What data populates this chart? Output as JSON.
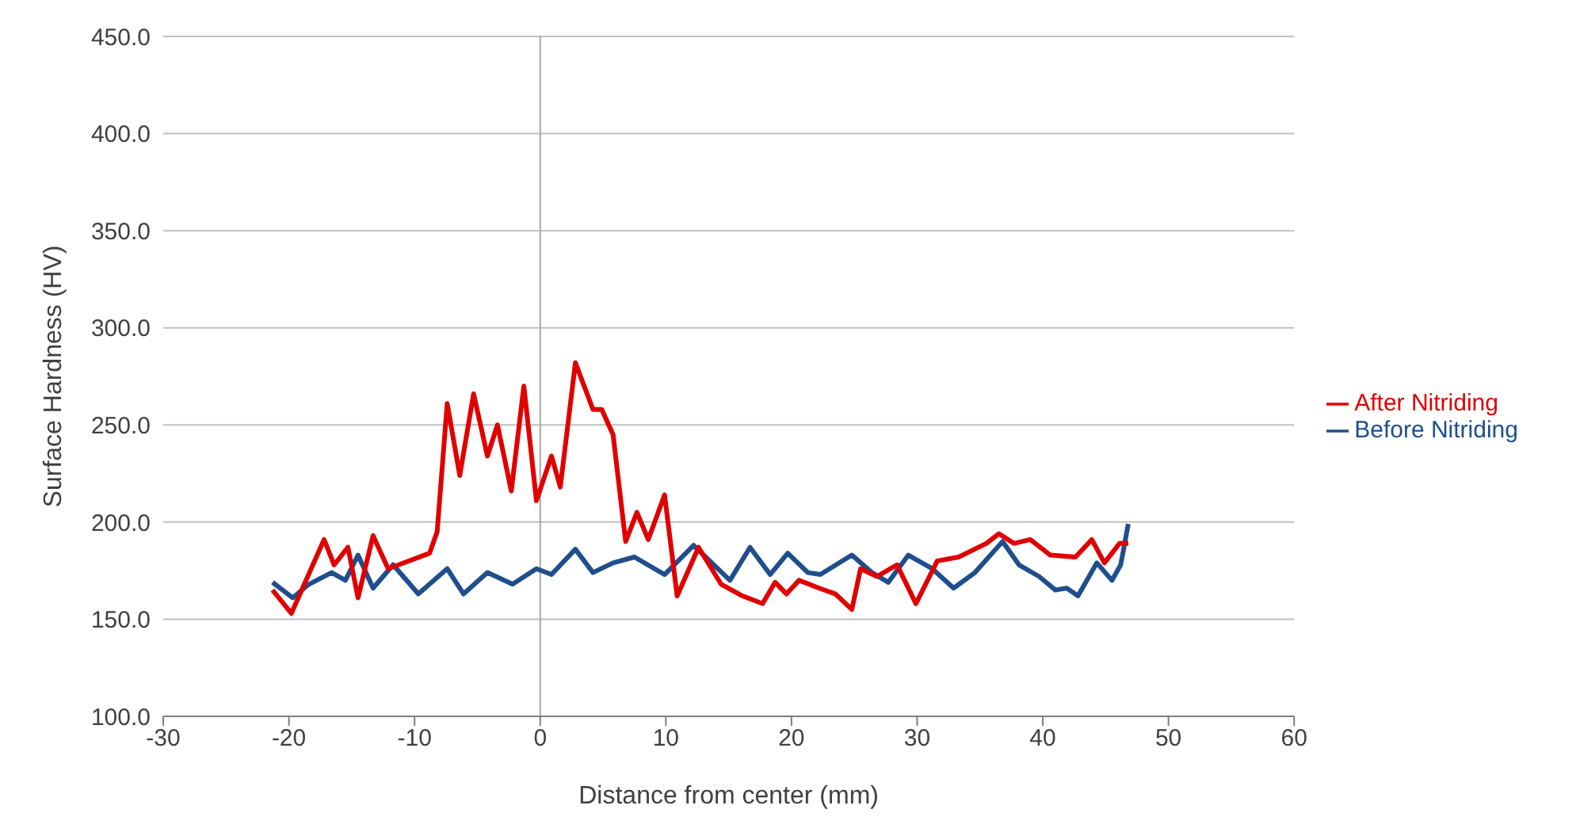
{
  "chart_data": {
    "type": "line",
    "xlabel": "Distance from center (mm)",
    "ylabel": "Surface Hardness (HV)",
    "xlim": [
      -30,
      60
    ],
    "xticks": [
      -30,
      -20,
      -10,
      0,
      10,
      20,
      30,
      40,
      50,
      60
    ],
    "ylim": [
      100,
      450
    ],
    "yticks": [
      {
        "value": 100,
        "label": "100.0"
      },
      {
        "value": 150,
        "label": "150.0"
      },
      {
        "value": 200,
        "label": "200.0"
      },
      {
        "value": 250,
        "label": "250.0"
      },
      {
        "value": 300,
        "label": "300.0"
      },
      {
        "value": 350,
        "label": "350.0"
      },
      {
        "value": 400,
        "label": "400.0"
      },
      {
        "value": 450,
        "label": "450.0"
      }
    ],
    "grid": "y",
    "legend": "right",
    "marker": "none",
    "line_style": "solid",
    "ref_lines": [
      {
        "axis": "x",
        "value": 0,
        "color": "#a6a6a6"
      }
    ],
    "series": [
      {
        "name": "Before Nitriding",
        "color": "#1f4e8c",
        "x": [
          -21.3,
          -19.7,
          -18.4,
          -16.6,
          -15.5,
          -14.5,
          -13.3,
          -11.7,
          -9.7,
          -7.4,
          -6.1,
          -4.2,
          -2.2,
          -0.3,
          0.9,
          2.8,
          4.2,
          5.8,
          7.5,
          9.9,
          12.2,
          15.1,
          16.7,
          18.3,
          19.7,
          21.3,
          22.3,
          24.8,
          26.4,
          27.7,
          29.3,
          31.2,
          32.9,
          34.6,
          36.8,
          38.1,
          39.7,
          41.0,
          41.9,
          42.8,
          44.3,
          45.5,
          46.2,
          46.8
        ],
        "values": [
          169,
          161,
          168,
          174,
          170,
          183,
          166,
          178,
          163,
          176,
          163,
          174,
          168,
          176,
          173,
          186,
          174,
          179,
          182,
          173,
          188,
          170,
          187,
          173,
          184,
          174,
          173,
          183,
          174,
          169,
          183,
          176,
          166,
          174,
          190,
          178,
          172,
          165,
          166,
          162,
          179,
          170,
          178,
          199
        ]
      },
      {
        "name": "After Nitriding",
        "color": "#e00000",
        "x": [
          -21.3,
          -19.8,
          -17.2,
          -16.4,
          -15.3,
          -14.5,
          -13.3,
          -12.1,
          -8.8,
          -8.2,
          -7.4,
          -6.4,
          -5.3,
          -4.2,
          -3.4,
          -2.3,
          -1.3,
          -0.3,
          0.9,
          1.6,
          2.8,
          4.2,
          4.9,
          5.8,
          6.8,
          7.7,
          8.6,
          9.9,
          10.9,
          12.6,
          14.4,
          16.1,
          17.7,
          18.7,
          19.6,
          20.6,
          22.2,
          23.5,
          24.8,
          25.5,
          26.8,
          28.4,
          29.9,
          31.6,
          33.3,
          35.5,
          36.5,
          37.7,
          39.0,
          40.6,
          42.6,
          43.9,
          44.9,
          46.1,
          46.8
        ],
        "values": [
          165,
          153,
          191,
          178,
          187,
          161,
          193,
          176,
          184,
          195,
          261,
          224,
          266,
          234,
          250,
          216,
          270,
          211,
          234,
          218,
          282,
          258,
          258,
          245,
          190,
          205,
          191,
          214,
          162,
          187,
          168,
          162,
          158,
          169,
          163,
          170,
          166,
          163,
          155,
          176,
          172,
          178,
          158,
          180,
          182,
          189,
          194,
          189,
          191,
          183,
          182,
          191,
          179,
          189,
          189
        ]
      }
    ]
  }
}
